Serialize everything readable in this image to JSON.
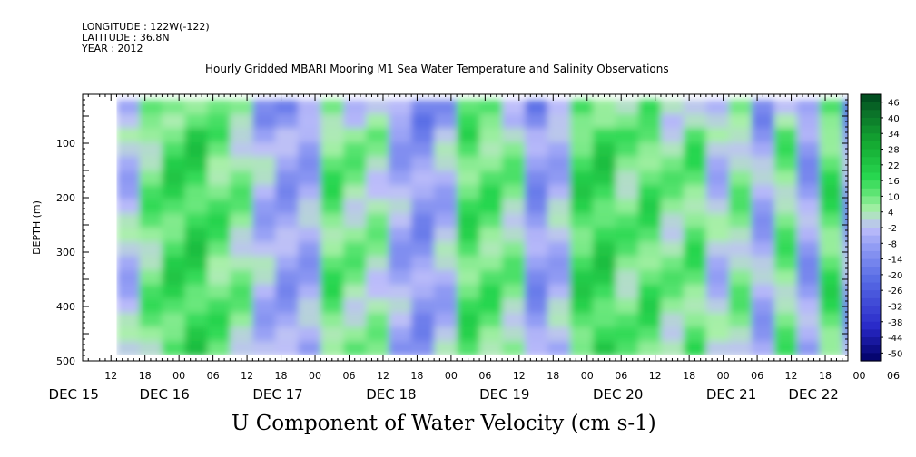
{
  "header": {
    "longitude": "LONGITUDE : 122W(-122)",
    "latitude": "LATITUDE : 36.8N",
    "year": "YEAR : 2012"
  },
  "title": "Hourly Gridded MBARI Mooring M1 Sea Water Temperature and Salinity Observations",
  "variable_title": "U Component of Water Velocity (cm s-1)",
  "chart_data": {
    "type": "heatmap",
    "title": "Hourly Gridded MBARI Mooring M1 Sea Water Temperature and Salinity Observations",
    "xlabel": "",
    "ylabel": "DEPTH (m)",
    "x_range_hours_from_dec15_00": [
      7,
      142
    ],
    "data_x_range_hours_from_dec15_00": [
      13,
      142
    ],
    "y_range_m": [
      500,
      10
    ],
    "y_ticks": [
      "100",
      "200",
      "300",
      "400",
      "500"
    ],
    "y_tick_values": [
      100,
      200,
      300,
      400,
      500
    ],
    "x_hour_ticks": [
      "12",
      "18",
      "00",
      "06",
      "12",
      "18",
      "00",
      "06",
      "12",
      "18",
      "00",
      "06",
      "12",
      "18",
      "00",
      "06",
      "12",
      "18",
      "00",
      "06",
      "12",
      "18",
      "00",
      "06",
      "12",
      "18",
      "00",
      "06",
      "12",
      "18",
      "00",
      "06",
      "12",
      "18",
      "00",
      "06"
    ],
    "x_hour_tick_values": [
      12,
      18,
      24,
      30,
      36,
      42,
      48,
      54,
      60,
      66,
      72,
      78,
      84,
      90,
      96,
      102,
      108,
      114,
      120,
      126,
      132,
      138,
      144,
      150,
      156,
      162,
      168,
      174,
      180,
      186,
      192,
      198,
      204,
      210,
      216,
      222
    ],
    "x_day_labels": [
      "DEC 15",
      "DEC 16",
      "DEC 17",
      "DEC 18",
      "DEC 19",
      "DEC 20",
      "DEC 21",
      "DEC 22"
    ],
    "x_day_values": [
      1,
      17,
      37,
      57,
      77,
      97,
      117,
      131.5
    ],
    "colorbar_labels": [
      "46",
      "40",
      "34",
      "28",
      "22",
      "16",
      "10",
      "4",
      "-2",
      "-8",
      "-14",
      "-20",
      "-26",
      "-32",
      "-38",
      "-44",
      "-50"
    ],
    "colorbar_range": [
      -50,
      46
    ],
    "profile_hours": [
      13,
      17,
      21,
      25,
      29,
      33,
      37,
      41,
      45,
      49,
      53,
      57,
      61,
      65,
      69,
      73,
      77,
      81,
      85,
      89,
      93,
      97,
      101,
      105,
      109,
      113,
      117,
      121,
      125,
      129,
      133,
      137,
      141
    ],
    "profile_values_cm_s": [
      -3,
      8,
      14,
      16,
      10,
      6,
      -4,
      -8,
      -6,
      10,
      6,
      4,
      -6,
      -10,
      -4,
      12,
      10,
      6,
      -10,
      -4,
      14,
      16,
      8,
      12,
      6,
      10,
      -2,
      6,
      -6,
      8,
      -8,
      12,
      -8
    ],
    "upper_depth_m": 20,
    "lower_depth_m": 490
  }
}
